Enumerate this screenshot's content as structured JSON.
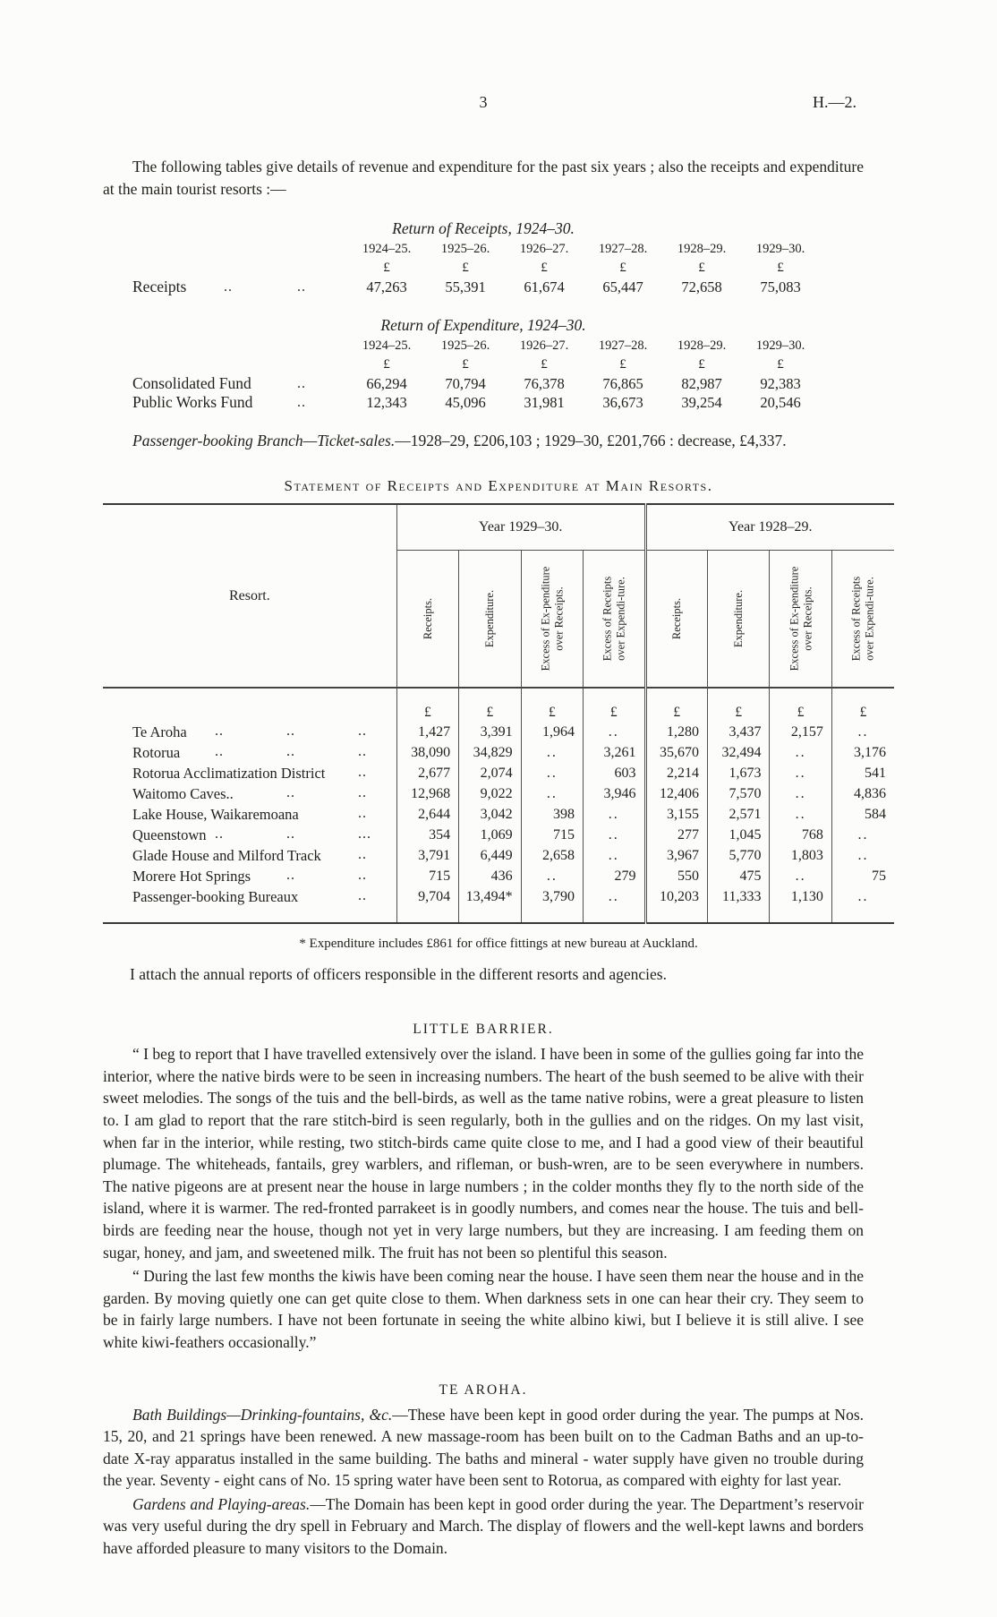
{
  "page": {
    "number": "3",
    "doc_ref": "H.—2."
  },
  "intro": "The following tables give details of revenue and expenditure for the past six years ; also the receipts and expenditure at the main tourist resorts :—",
  "currency": "£",
  "receipts_return": {
    "title": "Return of Receipts, 1924–30.",
    "years": [
      "1924–25.",
      "1925–26.",
      "1926–27.",
      "1927–28.",
      "1928–29.",
      "1929–30."
    ],
    "row": {
      "label": "Receipts",
      "leaders": [
        "..",
        ".."
      ],
      "values": [
        "47,263",
        "55,391",
        "61,674",
        "65,447",
        "72,658",
        "75,083"
      ]
    }
  },
  "expenditure_return": {
    "title": "Return of Expenditure, 1924–30.",
    "years": [
      "1924–25.",
      "1925–26.",
      "1926–27.",
      "1927–28.",
      "1928–29.",
      "1929–30."
    ],
    "rows": [
      {
        "label": "Consolidated Fund",
        "leaders": [
          "",
          ".."
        ],
        "values": [
          "66,294",
          "70,794",
          "76,378",
          "76,865",
          "82,987",
          "92,383"
        ]
      },
      {
        "label": "Public Works Fund",
        "leaders": [
          "",
          ".."
        ],
        "values": [
          "12,343",
          "45,096",
          "31,981",
          "36,673",
          "39,254",
          "20,546"
        ]
      }
    ]
  },
  "passenger_booking": {
    "lead": "Passenger-booking Branch—Ticket-sales.",
    "rest": "—1928–29, £206,103 ; 1929–30, £201,766 : decrease, £4,337."
  },
  "statement": {
    "title": "Statement of Receipts and Expenditure at Main Resorts.",
    "resort_header": "Resort.",
    "year_groups": [
      "Year 1929–30.",
      "Year 1928–29."
    ],
    "col_headers": [
      "Receipts.",
      "Expenditure.",
      "Excess of Ex-penditure over Receipts.",
      "Excess of Receipts over Expendi-ture."
    ],
    "rows": [
      {
        "name": "Te Aroha",
        "leaders": [
          "..",
          "..",
          ".."
        ],
        "cells": [
          "1,427",
          "3,391",
          "1,964",
          "..",
          "1,280",
          "3,437",
          "2,157",
          ".."
        ]
      },
      {
        "name": "Rotorua",
        "leaders": [
          "..",
          "..",
          ".."
        ],
        "cells": [
          "38,090",
          "34,829",
          "..",
          "3,261",
          "35,670",
          "32,494",
          "..",
          "3,176"
        ]
      },
      {
        "name": "Rotorua Acclimatization District",
        "leaders": [
          "",
          "",
          ".."
        ],
        "cells": [
          "2,677",
          "2,074",
          "..",
          "603",
          "2,214",
          "1,673",
          "..",
          "541"
        ]
      },
      {
        "name": "Waitomo Caves..",
        "leaders": [
          "",
          "..",
          ".."
        ],
        "cells": [
          "12,968",
          "9,022",
          "..",
          "3,946",
          "12,406",
          "7,570",
          "..",
          "4,836"
        ]
      },
      {
        "name": "Lake House, Waikaremoana",
        "leaders": [
          "",
          "",
          ".."
        ],
        "cells": [
          "2,644",
          "3,042",
          "398",
          "..",
          "3,155",
          "2,571",
          "..",
          "584"
        ]
      },
      {
        "name": "Queenstown",
        "leaders": [
          "..",
          "..",
          "..."
        ],
        "cells": [
          "354",
          "1,069",
          "715",
          "..",
          "277",
          "1,045",
          "768",
          ".."
        ]
      },
      {
        "name": "Glade House and Milford Track",
        "leaders": [
          "",
          "",
          ".."
        ],
        "cells": [
          "3,791",
          "6,449",
          "2,658",
          "..",
          "3,967",
          "5,770",
          "1,803",
          ".."
        ]
      },
      {
        "name": "Morere Hot Springs",
        "leaders": [
          "",
          "..",
          ".."
        ],
        "cells": [
          "715",
          "436",
          "..",
          "279",
          "550",
          "475",
          "..",
          "75"
        ]
      },
      {
        "name": "Passenger-booking Bureaux",
        "leaders": [
          "",
          "",
          ".."
        ],
        "cells": [
          "9,704",
          "13,494*",
          "3,790",
          "..",
          "10,203",
          "11,333",
          "1,130",
          ".."
        ]
      }
    ],
    "footnote": "* Expenditure includes £861 for office fittings at new bureau at Auckland."
  },
  "attach_note": "I attach the annual reports of officers responsible in the different resorts and agencies.",
  "little_barrier": {
    "heading": "LITTLE BARRIER.",
    "p1": "“ I beg to report that I have travelled extensively over the island.  I have been in some of the gullies going far into the interior, where the native birds were to be seen in increasing numbers.  The heart of the bush seemed to be alive with their sweet melodies.  The songs of the tuis and the bell-birds, as well as the tame native robins, were a great pleasure to listen to.  I am glad to report that the rare stitch-bird is seen regularly, both in the gullies and on the ridges.  On my last visit, when far in the interior, while resting, two stitch-birds came quite close to me, and I had a good view of their beautiful plumage.  The whiteheads, fantails, grey warblers, and rifleman, or bush-wren, are to be seen everywhere in numbers.  The native pigeons are at present near the house in large numbers ; in the colder months they fly to the north side of the island, where it is warmer.  The red-fronted parrakeet is in goodly numbers, and comes near the house.  The tuis and bell-birds are feeding near the house, though not yet in very large numbers, but they are increasing.  I am feeding them on sugar, honey, and jam, and sweetened milk.  The fruit has not been so plentiful this season.",
    "p2": "“ During the last few months the kiwis have been coming near the house.  I have seen them near the house and in the garden.  By moving quietly one can get quite close to them.  When darkness sets in one can hear their cry.  They seem to be in fairly large numbers.  I have not been fortunate in seeing the white albino kiwi, but I believe it is still alive.  I see white kiwi-feathers occasionally.”"
  },
  "te_aroha": {
    "heading": "TE AROHA.",
    "p1_lead": "Bath Buildings—Drinking-fountains, &c.",
    "p1_text": "—These have been kept in good order during the year.  The pumps at Nos. 15, 20, and 21 springs have been renewed.  A new massage-room has been built on to the Cadman Baths and an up-to-date X-ray apparatus installed in the same building.  The baths and mineral - water supply have given no trouble during the year.  Seventy - eight cans of No. 15 spring water have been sent to Rotorua, as compared with eighty for last year.",
    "p2_lead": "Gardens and Playing-areas.",
    "p2_text": "—The Domain has been kept in good order during the year.  The Department’s reservoir was very useful during the dry spell in February and March.  The display of flowers and the well-kept lawns and borders have afforded pleasure to many visitors to the Domain."
  }
}
